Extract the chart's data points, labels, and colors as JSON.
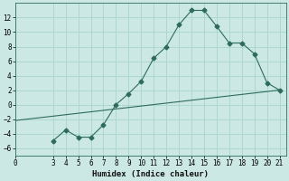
{
  "xlabel": "Humidex (Indice chaleur)",
  "ylabel": "",
  "background_color": "#cce8e4",
  "grid_color": "#aad4ce",
  "line_color": "#2d6b5e",
  "xlim": [
    0,
    21.5
  ],
  "ylim": [
    -7,
    14
  ],
  "yticks": [
    -6,
    -4,
    -2,
    0,
    2,
    4,
    6,
    8,
    10,
    12
  ],
  "xticks": [
    0,
    3,
    4,
    5,
    6,
    7,
    8,
    9,
    10,
    11,
    12,
    13,
    14,
    15,
    16,
    17,
    18,
    19,
    20,
    21
  ],
  "curve1_x": [
    3,
    4,
    5,
    6,
    7,
    8,
    9,
    10,
    11,
    12,
    13,
    14,
    15,
    16,
    17,
    18,
    19,
    20,
    21
  ],
  "curve1_y": [
    -5,
    -3.5,
    -4.5,
    -4.5,
    -2.8,
    0.0,
    1.5,
    3.2,
    6.4,
    8.0,
    11.0,
    13.0,
    13.0,
    10.8,
    8.5,
    8.5,
    7.0,
    3.0,
    2.0
  ],
  "curve2_x": [
    0,
    21
  ],
  "curve2_y": [
    -2.2,
    2.0
  ],
  "marker": "D",
  "marker_size": 2.5,
  "tick_fontsize": 5.5,
  "xlabel_fontsize": 6.5,
  "linewidth": 0.8
}
